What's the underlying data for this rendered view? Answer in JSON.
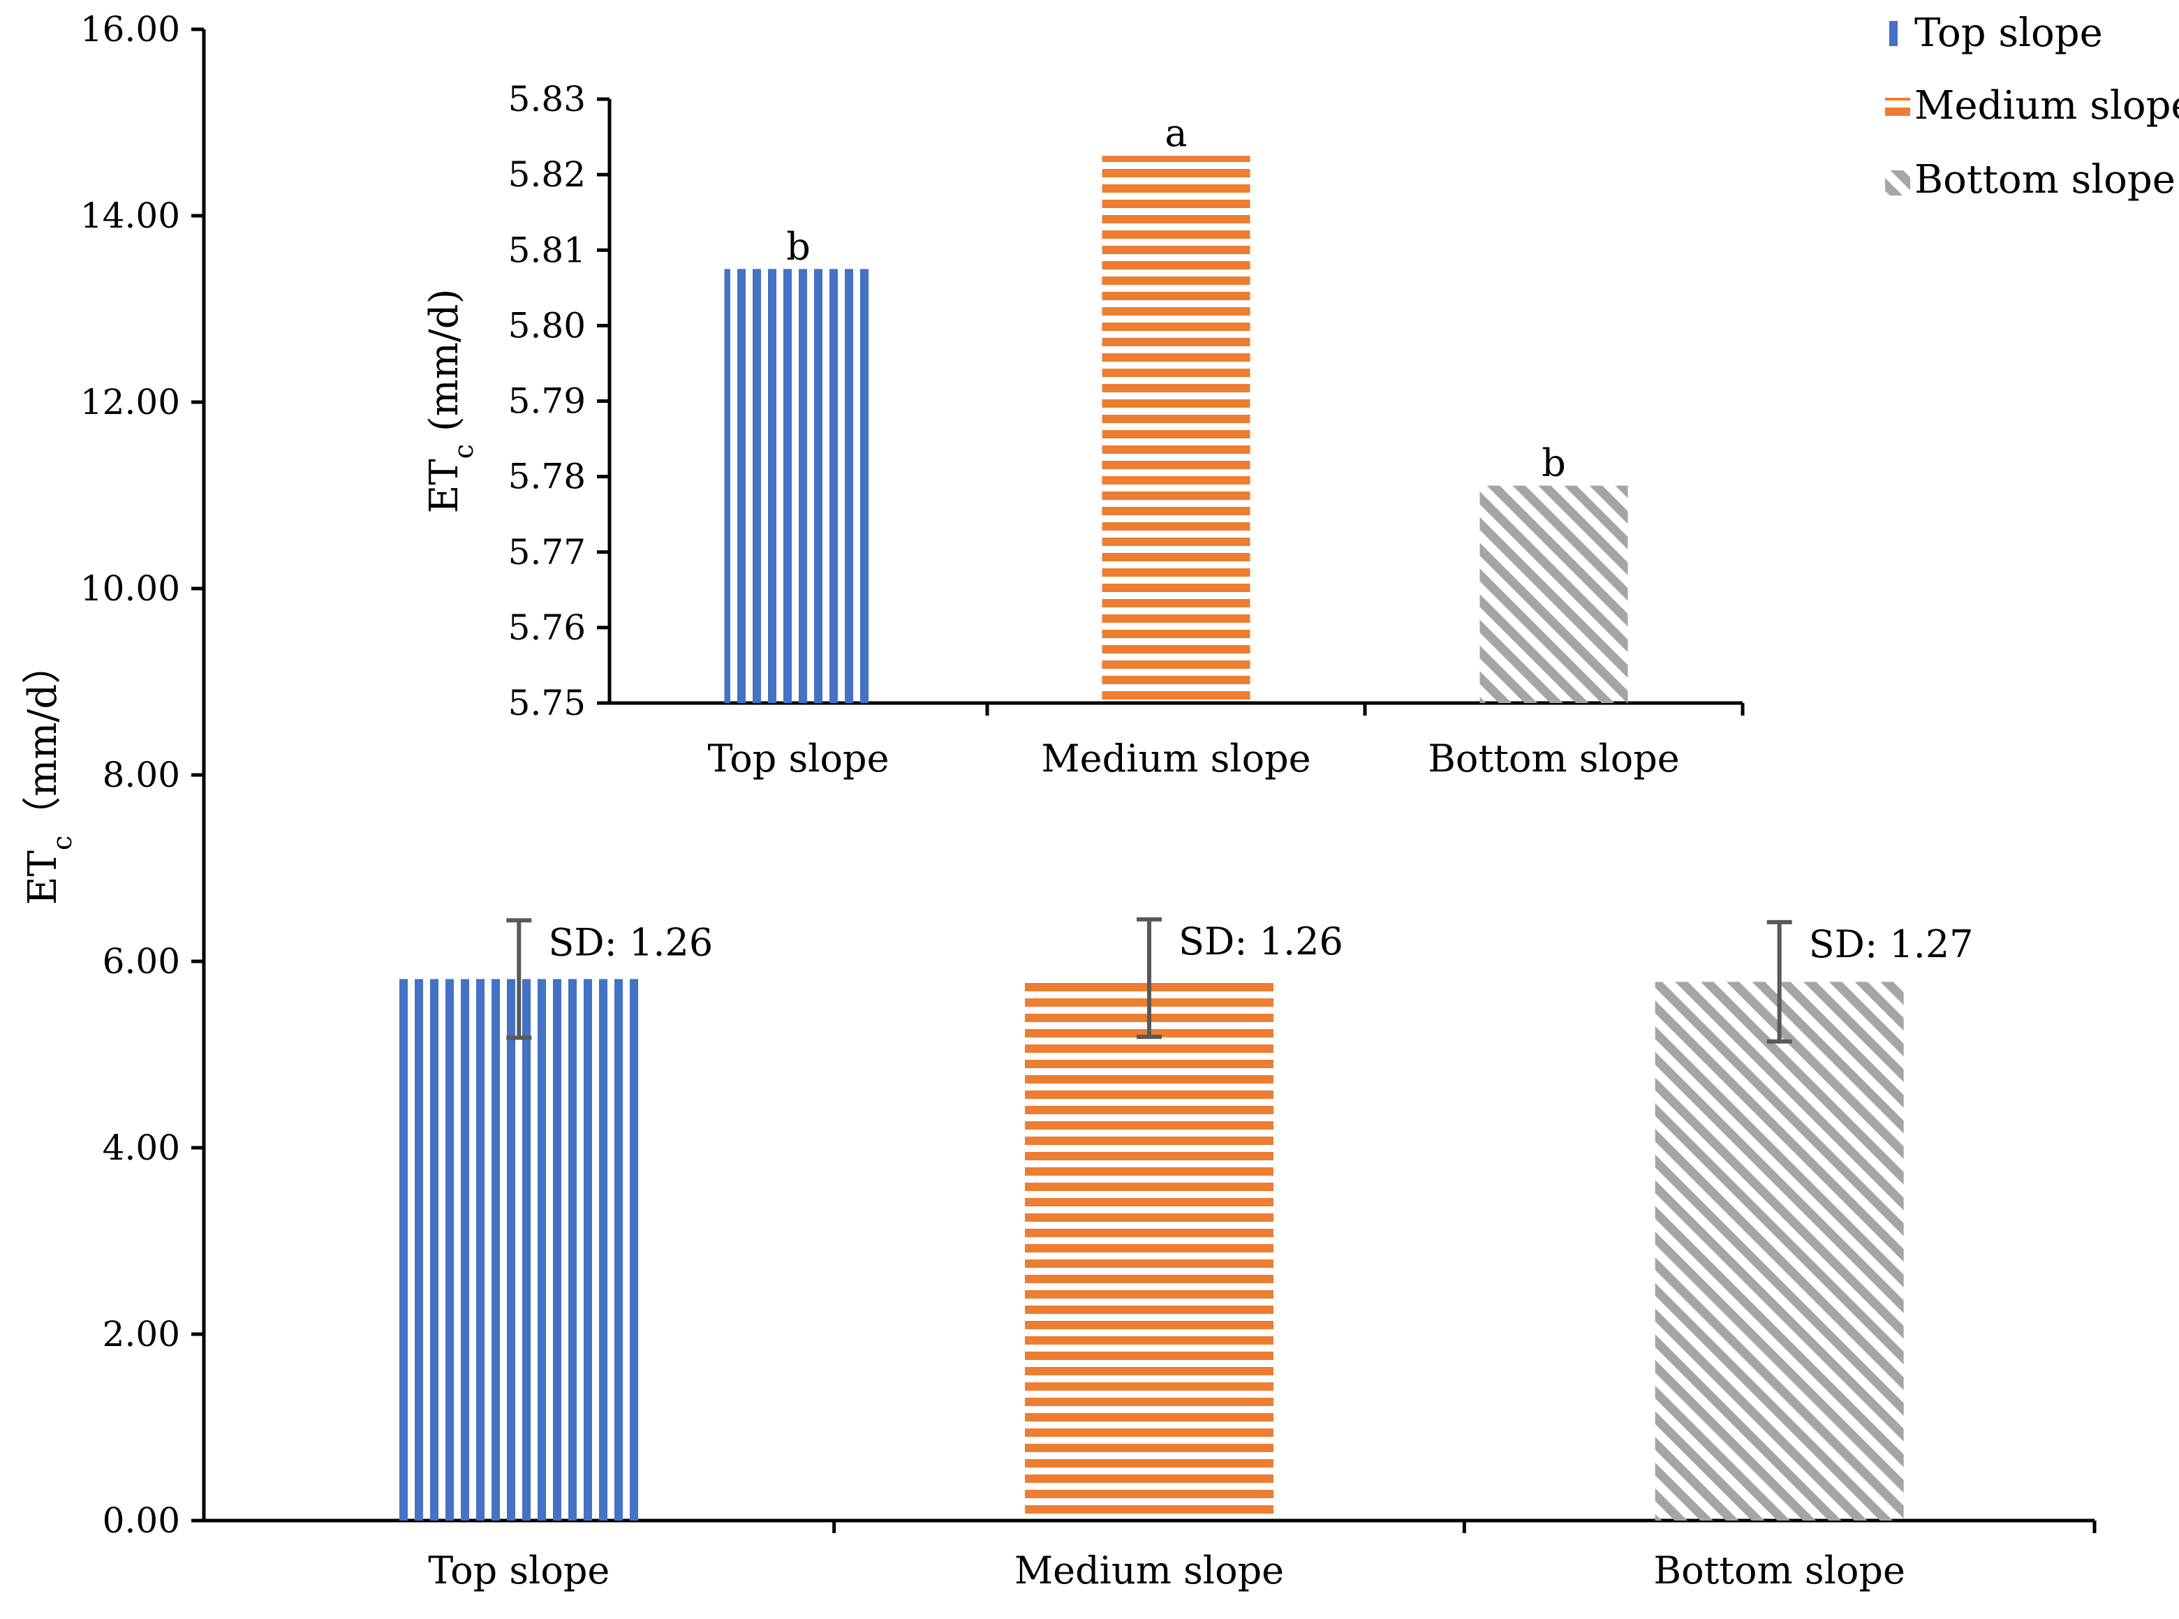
{
  "chart_data": [
    {
      "type": "bar",
      "role": "main",
      "categories": [
        "Top slope",
        "Medium slope",
        "Bottom slope"
      ],
      "values": [
        5.81,
        5.82,
        5.78
      ],
      "ylim": [
        0,
        16
      ],
      "yticks": [
        0,
        2,
        4,
        6,
        8,
        10,
        12,
        14,
        16
      ],
      "ytick_labels": [
        "0.00",
        "2.00",
        "4.00",
        "6.00",
        "8.00",
        "10.00",
        "12.00",
        "14.00",
        "16.00"
      ],
      "ylabel_main": "ET",
      "ylabel_sub": "c",
      "ylabel_unit": "（mm/d）",
      "error_bars": [
        0.63,
        0.63,
        0.64
      ],
      "annotations": [
        "SD: 1.26",
        "SD: 1.26",
        "SD: 1.27"
      ],
      "grid": false
    },
    {
      "type": "bar",
      "role": "inset",
      "categories": [
        "Top slope",
        "Medium slope",
        "Bottom slope"
      ],
      "values": [
        5.8075,
        5.8225,
        5.7788
      ],
      "ylim": [
        5.75,
        5.83
      ],
      "yticks": [
        5.75,
        5.76,
        5.77,
        5.78,
        5.79,
        5.8,
        5.81,
        5.82,
        5.83
      ],
      "ytick_labels": [
        "5.75",
        "5.76",
        "5.77",
        "5.78",
        "5.79",
        "5.80",
        "5.81",
        "5.82",
        "5.83"
      ],
      "ylabel_main": "ET",
      "ylabel_sub": "c",
      "ylabel_unit": " (mm/d)",
      "annotations": [
        "b",
        "a",
        "b"
      ],
      "grid": false
    }
  ],
  "legend": {
    "position": "top-right",
    "items": [
      {
        "label": "Top slope",
        "pattern": "vertical-stripes"
      },
      {
        "label": "Medium slope",
        "pattern": "horizontal-stripes"
      },
      {
        "label": "Bottom slope",
        "pattern": "diagonal-stripes"
      }
    ]
  },
  "colors": {
    "top": "#4472C4",
    "medium": "#ED7D31",
    "bottom": "#A5A5A5",
    "error": "#595959",
    "axis": "#000000"
  }
}
